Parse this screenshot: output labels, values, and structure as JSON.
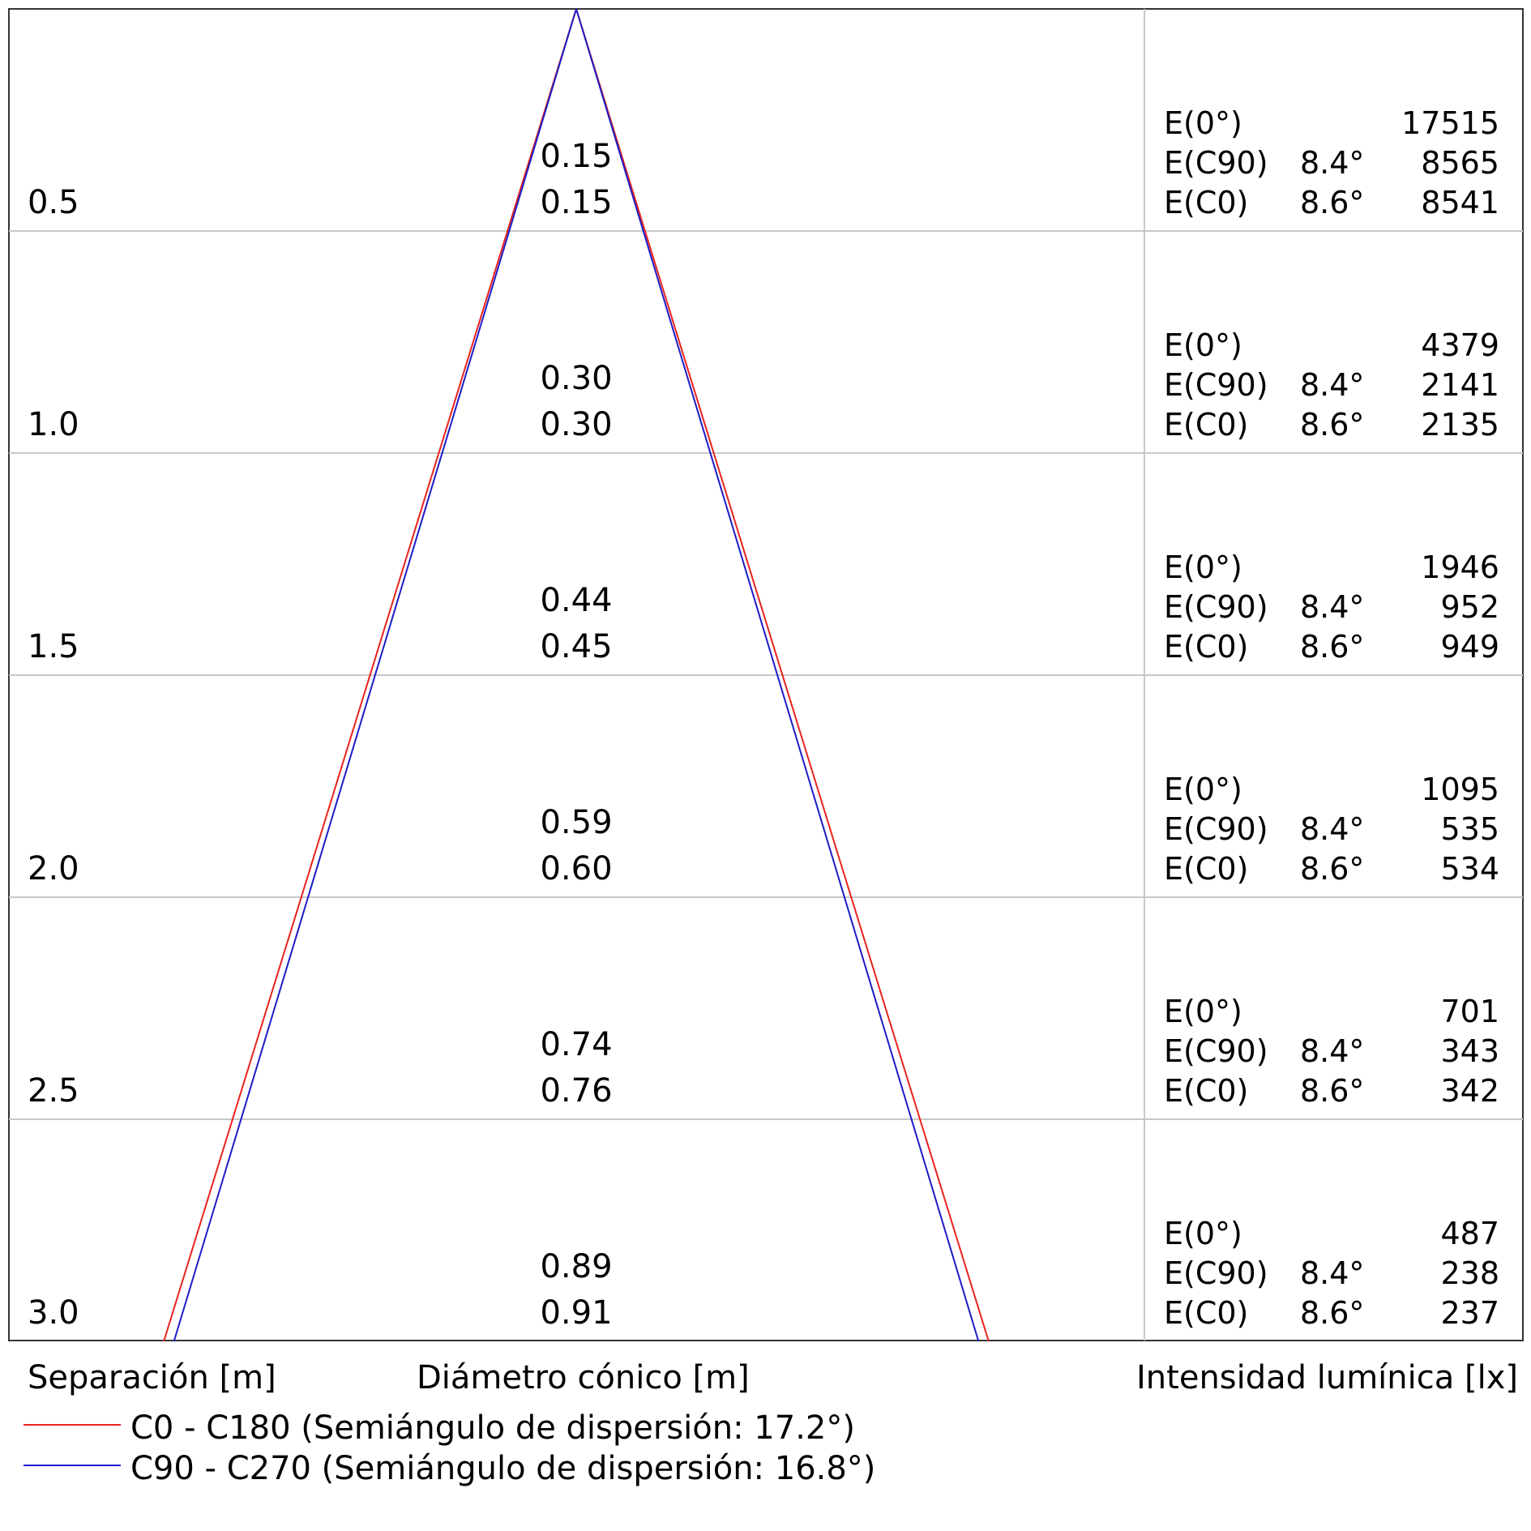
{
  "diagram": {
    "rows": [
      {
        "separation": "0.5",
        "diam_c90": "0.15",
        "diam_c0": "0.15",
        "e0": "17515",
        "ec90": "8565",
        "ec0": "8541"
      },
      {
        "separation": "1.0",
        "diam_c90": "0.30",
        "diam_c0": "0.30",
        "e0": "4379",
        "ec90": "2141",
        "ec0": "2135"
      },
      {
        "separation": "1.5",
        "diam_c90": "0.44",
        "diam_c0": "0.45",
        "e0": "1946",
        "ec90": "952",
        "ec0": "949"
      },
      {
        "separation": "2.0",
        "diam_c90": "0.59",
        "diam_c0": "0.60",
        "e0": "1095",
        "ec90": "535",
        "ec0": "534"
      },
      {
        "separation": "2.5",
        "diam_c90": "0.74",
        "diam_c0": "0.76",
        "e0": "701",
        "ec90": "343",
        "ec0": "342"
      },
      {
        "separation": "3.0",
        "diam_c90": "0.89",
        "diam_c0": "0.91",
        "e0": "487",
        "ec90": "238",
        "ec0": "237"
      }
    ],
    "labels": {
      "e0": "E(0°)",
      "ec90": "E(C90)",
      "ec0": "E(C0)",
      "angle_c90": "8.4°",
      "angle_c0": "8.6°"
    },
    "half_angle_c0_deg": 17.2,
    "half_angle_c90_deg": 16.8,
    "colors": {
      "c0": "#e8231c",
      "c90": "#1c1cc8",
      "grid": "#c8c8c8"
    }
  },
  "footer": {
    "separation_label": "Separación [m]",
    "diameter_label": "Diámetro cónico [m]",
    "intensity_label": "Intensidad lumínica [lx]"
  },
  "legend": [
    {
      "text": "C0 - C180 (Semiángulo de dispersión: 17.2°)",
      "color": "#e8231c"
    },
    {
      "text": "C90 - C270 (Semiángulo de dispersión: 16.8°)",
      "color": "#1c1cc8"
    }
  ]
}
